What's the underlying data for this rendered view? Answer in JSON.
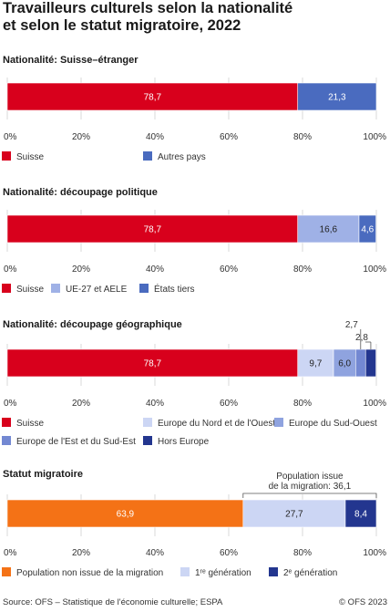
{
  "title_lines": [
    "Travailleurs culturels selon la nationalité",
    "et selon le statut migratoire, 2022"
  ],
  "footer": {
    "source": "Source: OFS – Statistique de l'économie culturelle; ESPA",
    "copyright": "© OFS 2023"
  },
  "colors": {
    "red": "#d8001c",
    "blue": "#4a6bbf",
    "light_blue": "#9fb1e6",
    "very_light_blue": "#ccd6f4",
    "medium_blue": "#8fa3df",
    "periwinkle": "#7388d2",
    "navy": "#23368f",
    "orange": "#f47216"
  },
  "chart_data": [
    {
      "type": "bar",
      "stacked": true,
      "orientation": "horizontal",
      "title": "Nationalité: Suisse–étranger",
      "xlim": [
        0,
        100
      ],
      "x_ticks": [
        "0%",
        "20%",
        "40%",
        "60%",
        "80%",
        "100%"
      ],
      "series": [
        {
          "name": "Suisse",
          "value": 78.7,
          "label": "78,7",
          "color": "#d8001c"
        },
        {
          "name": "Autres pays",
          "value": 21.3,
          "label": "21,3",
          "color": "#4a6bbf"
        }
      ]
    },
    {
      "type": "bar",
      "stacked": true,
      "orientation": "horizontal",
      "title": "Nationalité: découpage politique",
      "xlim": [
        0,
        100
      ],
      "x_ticks": [
        "0%",
        "20%",
        "40%",
        "60%",
        "80%",
        "100%"
      ],
      "series": [
        {
          "name": "Suisse",
          "value": 78.7,
          "label": "78,7",
          "color": "#d8001c"
        },
        {
          "name": "UE-27 et AELE",
          "value": 16.6,
          "label": "16,6",
          "color": "#9fb1e6"
        },
        {
          "name": "États tiers",
          "value": 4.6,
          "label": "4,6",
          "color": "#4a6bbf"
        }
      ]
    },
    {
      "type": "bar",
      "stacked": true,
      "orientation": "horizontal",
      "title": "Nationalité: découpage géographique",
      "xlim": [
        0,
        100
      ],
      "x_ticks": [
        "0%",
        "20%",
        "40%",
        "60%",
        "80%",
        "100%"
      ],
      "series": [
        {
          "name": "Suisse",
          "value": 78.7,
          "label": "78,7",
          "color": "#d8001c"
        },
        {
          "name": "Europe du Nord et de l'Ouest",
          "value": 9.7,
          "label": "9,7",
          "color": "#ccd6f4"
        },
        {
          "name": "Europe du Sud-Ouest",
          "value": 6.0,
          "label": "6,0",
          "color": "#8fa3df"
        },
        {
          "name": "Europe de l'Est et du Sud-Est",
          "value": 2.7,
          "label": "2,7",
          "color": "#7388d2",
          "callout": true
        },
        {
          "name": "Hors Europe",
          "value": 2.8,
          "label": "2,8",
          "color": "#23368f",
          "callout": true
        }
      ]
    },
    {
      "type": "bar",
      "stacked": true,
      "orientation": "horizontal",
      "title": "Statut migratoire",
      "xlim": [
        0,
        100
      ],
      "x_ticks": [
        "0%",
        "20%",
        "40%",
        "60%",
        "80%",
        "100%"
      ],
      "bracket": {
        "label_lines": [
          "Population issue",
          "de la migration: 36,1"
        ],
        "from": 63.9,
        "to": 100
      },
      "series": [
        {
          "name": "Population non issue de la migration",
          "value": 63.9,
          "label": "63,9",
          "color": "#f47216"
        },
        {
          "name": "1ʳᵉ génération",
          "value": 27.7,
          "label": "27,7",
          "color": "#ccd6f4"
        },
        {
          "name": "2ᵉ génération",
          "value": 8.4,
          "label": "8,4",
          "color": "#23368f"
        }
      ]
    }
  ]
}
